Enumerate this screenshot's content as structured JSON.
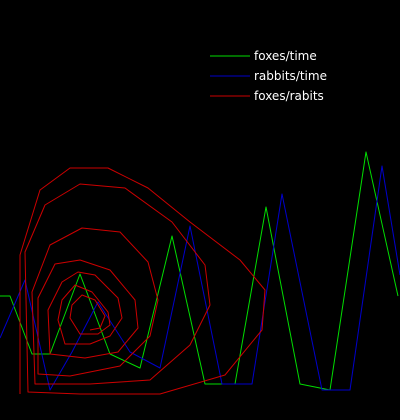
{
  "chart_data": {
    "type": "line",
    "title": "",
    "xlabel": "",
    "ylabel": "",
    "grid": false,
    "legend_position": "top-right",
    "background": "#000000",
    "series": [
      {
        "name": "foxes/time",
        "color": "#00dd00",
        "points": [
          [
            0,
            296
          ],
          [
            10,
            296
          ],
          [
            32,
            354
          ],
          [
            50,
            354
          ],
          [
            80,
            274
          ],
          [
            110,
            354
          ],
          [
            140,
            368
          ],
          [
            172,
            236
          ],
          [
            205,
            384
          ],
          [
            235,
            384
          ],
          [
            266,
            207
          ],
          [
            300,
            384
          ],
          [
            330,
            390
          ],
          [
            366,
            152
          ],
          [
            398,
            296
          ]
        ]
      },
      {
        "name": "rabbits/time",
        "color": "#0000cc",
        "points": [
          [
            0,
            338
          ],
          [
            25,
            280
          ],
          [
            50,
            390
          ],
          [
            72,
            352
          ],
          [
            98,
            302
          ],
          [
            130,
            352
          ],
          [
            160,
            368
          ],
          [
            190,
            226
          ],
          [
            222,
            384
          ],
          [
            252,
            384
          ],
          [
            282,
            194
          ],
          [
            322,
            390
          ],
          [
            350,
            390
          ],
          [
            382,
            166
          ],
          [
            400,
            275
          ]
        ]
      },
      {
        "name": "foxes/rabits",
        "color": "#cc0000",
        "points": [
          [
            20,
            394
          ],
          [
            20,
            255
          ],
          [
            40,
            190
          ],
          [
            70,
            168
          ],
          [
            108,
            168
          ],
          [
            148,
            188
          ],
          [
            190,
            222
          ],
          [
            240,
            260
          ],
          [
            265,
            290
          ],
          [
            262,
            330
          ],
          [
            225,
            375
          ],
          [
            160,
            394
          ],
          [
            80,
            394
          ],
          [
            28,
            392
          ],
          [
            25,
            252
          ],
          [
            45,
            205
          ],
          [
            80,
            184
          ],
          [
            125,
            188
          ],
          [
            172,
            222
          ],
          [
            205,
            265
          ],
          [
            210,
            305
          ],
          [
            190,
            345
          ],
          [
            150,
            380
          ],
          [
            90,
            384
          ],
          [
            35,
            384
          ],
          [
            32,
            292
          ],
          [
            50,
            245
          ],
          [
            82,
            228
          ],
          [
            120,
            232
          ],
          [
            148,
            262
          ],
          [
            158,
            300
          ],
          [
            150,
            336
          ],
          [
            120,
            366
          ],
          [
            70,
            376
          ],
          [
            38,
            374
          ],
          [
            38,
            298
          ],
          [
            55,
            264
          ],
          [
            80,
            260
          ],
          [
            110,
            270
          ],
          [
            135,
            300
          ],
          [
            138,
            328
          ],
          [
            118,
            352
          ],
          [
            85,
            358
          ],
          [
            50,
            354
          ],
          [
            48,
            310
          ],
          [
            62,
            282
          ],
          [
            78,
            272
          ],
          [
            95,
            275
          ],
          [
            118,
            298
          ],
          [
            122,
            318
          ],
          [
            110,
            336
          ],
          [
            90,
            344
          ],
          [
            65,
            344
          ],
          [
            58,
            320
          ],
          [
            62,
            300
          ],
          [
            75,
            285
          ],
          [
            92,
            292
          ],
          [
            108,
            312
          ],
          [
            110,
            325
          ],
          [
            98,
            334
          ],
          [
            80,
            334
          ],
          [
            70,
            318
          ],
          [
            72,
            305
          ],
          [
            82,
            295
          ],
          [
            95,
            300
          ],
          [
            105,
            316
          ],
          [
            100,
            328
          ],
          [
            90,
            330
          ]
        ]
      }
    ]
  }
}
